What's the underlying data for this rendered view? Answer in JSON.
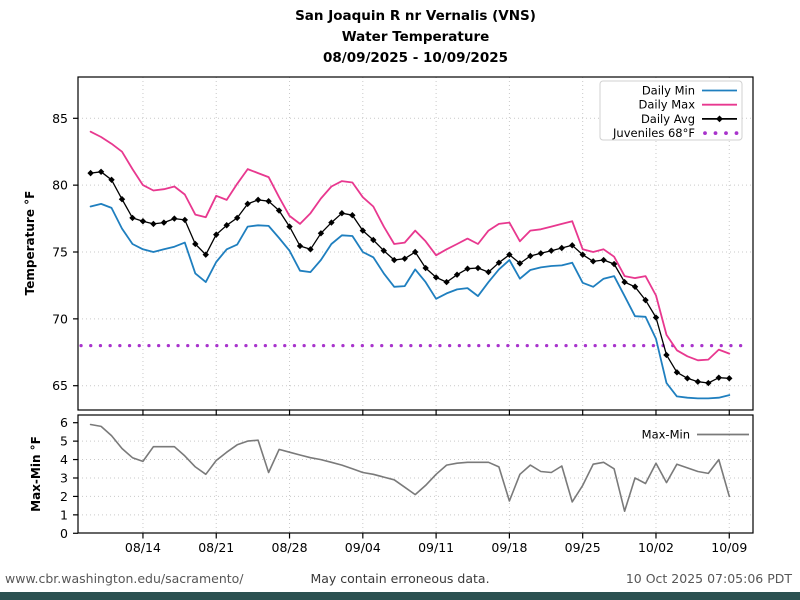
{
  "title": {
    "line1": "San Joaquin R nr Vernalis (VNS)",
    "line2": "Water Temperature",
    "line3": "08/09/2025 - 10/09/2025"
  },
  "footer": {
    "url": "www.cbr.washington.edu/sacramento/",
    "disclaimer": "May contain erroneous data.",
    "timestamp": "10 Oct 2025 07:05:06 PDT",
    "bar_color": "#2b5151"
  },
  "colors": {
    "daily_min": "#1f7fbf",
    "daily_max": "#e8388f",
    "daily_avg": "#000000",
    "juveniles": "#a833cc",
    "max_min": "#7a7a7a",
    "grid": "#c9c9c9",
    "footer_text": "#575757"
  },
  "chart_data": [
    {
      "type": "line",
      "panel": "main",
      "ylabel": "Temperature °F",
      "ylim": [
        63.2,
        88.2
      ],
      "yticks": [
        65,
        70,
        75,
        80,
        85
      ],
      "grid": true,
      "legend_position": "upper right",
      "x": [
        "08/09",
        "08/10",
        "08/11",
        "08/12",
        "08/13",
        "08/14",
        "08/15",
        "08/16",
        "08/17",
        "08/18",
        "08/19",
        "08/20",
        "08/21",
        "08/22",
        "08/23",
        "08/24",
        "08/25",
        "08/26",
        "08/27",
        "08/28",
        "08/29",
        "08/30",
        "08/31",
        "09/01",
        "09/02",
        "09/03",
        "09/04",
        "09/05",
        "09/06",
        "09/07",
        "09/08",
        "09/09",
        "09/10",
        "09/11",
        "09/12",
        "09/13",
        "09/14",
        "09/15",
        "09/16",
        "09/17",
        "09/18",
        "09/19",
        "09/20",
        "09/21",
        "09/22",
        "09/23",
        "09/24",
        "09/25",
        "09/26",
        "09/27",
        "09/28",
        "09/29",
        "09/30",
        "10/01",
        "10/02",
        "10/03",
        "10/04",
        "10/05",
        "10/06",
        "10/07",
        "10/08",
        "10/09"
      ],
      "xtick_labels": [
        "08/14",
        "08/21",
        "08/28",
        "09/04",
        "09/11",
        "09/18",
        "09/25",
        "10/02",
        "10/09"
      ],
      "xtick_days": [
        5,
        12,
        19,
        26,
        33,
        40,
        47,
        54,
        61
      ],
      "series": [
        {
          "name": "Daily Min",
          "color": "#1f7fbf",
          "style": "line",
          "values": [
            78.4,
            78.6,
            78.3,
            76.75,
            75.6,
            75.2,
            75.0,
            75.2,
            75.4,
            75.7,
            73.4,
            72.75,
            74.25,
            75.2,
            75.55,
            76.9,
            77.0,
            76.95,
            76.05,
            75.1,
            73.6,
            73.5,
            74.4,
            75.6,
            76.25,
            76.2,
            75.0,
            74.6,
            73.4,
            72.4,
            72.45,
            73.7,
            72.75,
            71.5,
            71.9,
            72.2,
            72.3,
            71.7,
            72.75,
            73.7,
            74.4,
            73.0,
            73.65,
            73.85,
            73.95,
            74.0,
            74.2,
            72.7,
            72.4,
            73.0,
            73.2,
            71.7,
            70.2,
            70.15,
            68.5,
            65.2,
            64.2,
            64.1,
            64.05,
            64.05,
            64.1,
            64.3
          ]
        },
        {
          "name": "Daily Max",
          "color": "#e8388f",
          "style": "line",
          "values": [
            84.0,
            83.6,
            83.1,
            82.5,
            81.2,
            80.0,
            79.6,
            79.7,
            79.9,
            79.3,
            77.8,
            77.6,
            79.2,
            78.9,
            80.1,
            81.2,
            80.9,
            80.6,
            79.1,
            77.7,
            77.1,
            77.9,
            79.0,
            79.9,
            80.3,
            80.2,
            79.1,
            78.4,
            76.9,
            75.6,
            75.7,
            76.6,
            75.8,
            74.75,
            75.2,
            75.6,
            76.0,
            75.6,
            76.6,
            77.1,
            77.2,
            75.8,
            76.6,
            76.7,
            76.9,
            77.1,
            77.3,
            75.2,
            75.0,
            75.2,
            74.65,
            73.2,
            73.05,
            73.2,
            71.75,
            68.8,
            67.65,
            67.2,
            66.9,
            66.95,
            67.7,
            67.4
          ]
        },
        {
          "name": "Daily Avg",
          "color": "#000000",
          "style": "line-marker",
          "values": [
            80.9,
            81.0,
            80.4,
            78.95,
            77.55,
            77.3,
            77.1,
            77.2,
            77.5,
            77.4,
            75.6,
            74.8,
            76.3,
            77.0,
            77.55,
            78.6,
            78.9,
            78.8,
            78.1,
            76.9,
            75.45,
            75.2,
            76.4,
            77.2,
            77.9,
            77.75,
            76.6,
            75.9,
            75.1,
            74.4,
            74.5,
            75.0,
            73.8,
            73.1,
            72.75,
            73.3,
            73.75,
            73.8,
            73.5,
            74.2,
            74.8,
            74.15,
            74.7,
            74.9,
            75.1,
            75.3,
            75.5,
            74.8,
            74.3,
            74.4,
            74.1,
            72.75,
            72.4,
            71.4,
            70.1,
            67.3,
            66.0,
            65.55,
            65.3,
            65.2,
            65.6,
            65.55
          ]
        }
      ],
      "reference_line": {
        "name": "Juveniles 68°F",
        "value": 68,
        "color": "#a833cc",
        "style": "dots"
      }
    },
    {
      "type": "line",
      "panel": "bottom",
      "ylabel": "Max-Min °F",
      "ylim": [
        0,
        6.4
      ],
      "yticks": [
        0,
        1,
        2,
        3,
        4,
        5,
        6
      ],
      "grid": true,
      "legend_position": "upper right",
      "series": [
        {
          "name": "Max-Min",
          "color": "#7a7a7a",
          "style": "line",
          "values": [
            5.9,
            5.8,
            5.3,
            4.6,
            4.1,
            3.9,
            4.7,
            4.7,
            4.7,
            4.2,
            3.6,
            3.2,
            3.95,
            4.4,
            4.8,
            5.0,
            5.05,
            3.3,
            4.55,
            4.4,
            4.25,
            4.1,
            4.0,
            3.85,
            3.7,
            3.5,
            3.3,
            3.2,
            3.05,
            2.9,
            2.5,
            2.1,
            2.6,
            3.2,
            3.7,
            3.8,
            3.85,
            3.85,
            3.85,
            3.6,
            1.75,
            3.2,
            3.7,
            3.35,
            3.3,
            3.65,
            1.7,
            2.6,
            3.75,
            3.85,
            3.5,
            1.2,
            3.0,
            2.7,
            3.8,
            2.75,
            3.75,
            3.55,
            3.35,
            3.25,
            4.0,
            2.0
          ]
        }
      ]
    }
  ]
}
